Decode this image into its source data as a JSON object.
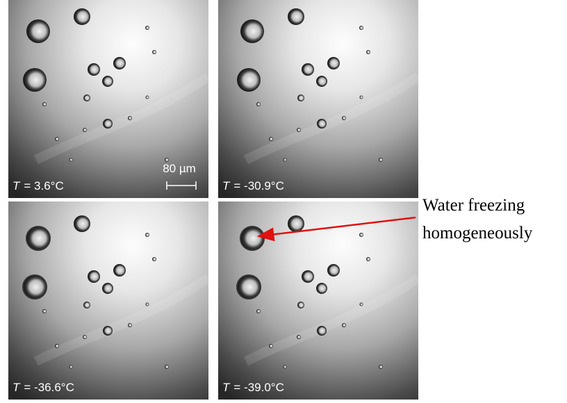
{
  "panels": [
    {
      "symbol": "T",
      "value": "= 3.6°C"
    },
    {
      "symbol": "T",
      "value": "= -30.9°C"
    },
    {
      "symbol": "T",
      "value": "= -36.6°C"
    },
    {
      "symbol": "T",
      "value": "= -39.0°C"
    }
  ],
  "scale_bar": "80 µm",
  "annotation": {
    "lines": [
      "Water freezing",
      "homogeneously"
    ]
  }
}
